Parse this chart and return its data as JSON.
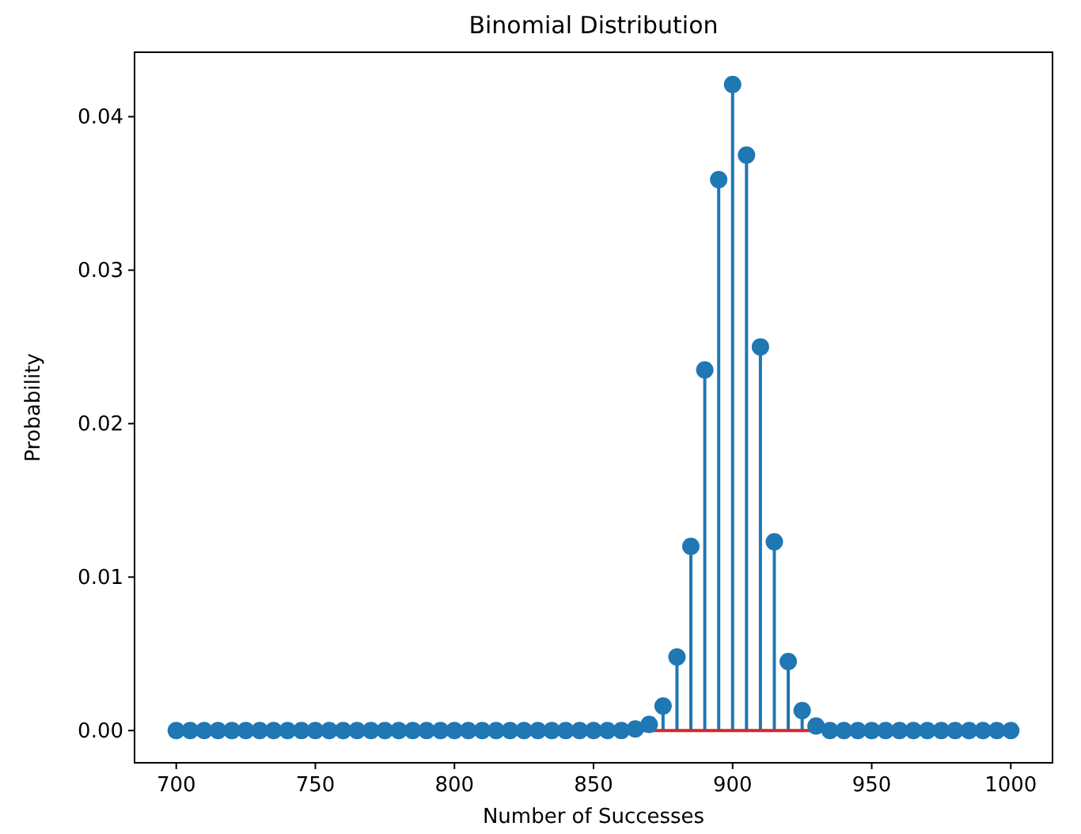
{
  "chart_data": {
    "type": "lollipop",
    "title": "Binomial Distribution",
    "xlabel": "Number of Successes",
    "ylabel": "Probability",
    "x": [
      700,
      705,
      710,
      715,
      720,
      725,
      730,
      735,
      740,
      745,
      750,
      755,
      760,
      765,
      770,
      775,
      780,
      785,
      790,
      795,
      800,
      805,
      810,
      815,
      820,
      825,
      830,
      835,
      840,
      845,
      850,
      855,
      860,
      865,
      870,
      875,
      880,
      885,
      890,
      895,
      900,
      905,
      910,
      915,
      920,
      925,
      930,
      935,
      940,
      945,
      950,
      955,
      960,
      965,
      970,
      975,
      980,
      985,
      990,
      995,
      1000
    ],
    "series": [
      {
        "color": "#1f77b4",
        "values": [
          0,
          0,
          0,
          0,
          0,
          0,
          0,
          0,
          0,
          0,
          0,
          0,
          0,
          0,
          0,
          0,
          0,
          0,
          0,
          0,
          0,
          0,
          0,
          0,
          0,
          0,
          0,
          0,
          0,
          0,
          0,
          0,
          0,
          0.0001,
          0.0004,
          0.0016,
          0.0048,
          0.012,
          0.0235,
          0.0359,
          0.0421,
          0.0375,
          0.025,
          0.0123,
          0.0045,
          0.0013,
          0.0003,
          0,
          0,
          0,
          0,
          0,
          0,
          0,
          0,
          0,
          0,
          0,
          0,
          0,
          0
        ]
      }
    ],
    "marker": "circle",
    "ref_lines": [
      {
        "axis": "y",
        "value": 0,
        "color": "#d62728"
      }
    ],
    "xlim": [
      685,
      1015
    ],
    "xticks": [
      700,
      750,
      800,
      850,
      900,
      950,
      1000
    ],
    "ylim": [
      -0.0021,
      0.0442
    ],
    "yticks": [
      {
        "value": 0,
        "label": "0.00"
      },
      {
        "value": 0.01,
        "label": "0.01"
      },
      {
        "value": 0.02,
        "label": "0.02"
      },
      {
        "value": 0.03,
        "label": "0.03"
      },
      {
        "value": 0.04,
        "label": "0.04"
      }
    ],
    "grid": false
  }
}
